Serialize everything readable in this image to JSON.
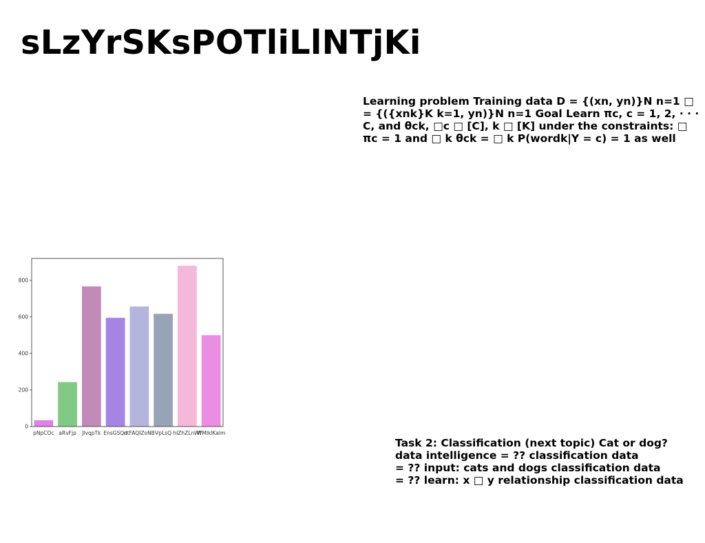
{
  "slide": {
    "title": "sLzYrSKsPOTliLlNTjKi",
    "text_block_1": [
      "Learning problem Training data D = {(xn, yn)}N n=1 □",
      "= {({xnk}K k=1, yn)}N n=1 Goal Learn πc, c = 1, 2, · · ·",
      "C, and θck, □c □ [C], k □ [K] under the constraints: □",
      "πc = 1 and □ k θck = □ k P(wordk|Y = c) = 1 as well"
    ],
    "text_block_2": [
      "Task 2: Classification (next topic) Cat or dog?",
      "data intelligence = ?? classification data",
      "= ?? input: cats and dogs classification data",
      "= ?? learn: x □ y relationship classification data"
    ]
  },
  "chart_data": {
    "type": "bar",
    "title": "",
    "xlabel": "",
    "ylabel": "",
    "categories": [
      "pNpCOc",
      "aRvFjp",
      "JlvqpTk",
      "EnsGSQn",
      "dtFAQIZoNB",
      "VpLsQ",
      "hlZhZLnWf",
      "WMIklKalm"
    ],
    "values": [
      35,
      243,
      767,
      595,
      657,
      617,
      880,
      500
    ],
    "colors": [
      "#dc84e6",
      "#82c986",
      "#c28ab9",
      "#a485e4",
      "#b3b5dc",
      "#98a4b6",
      "#f5b8d8",
      "#e98ee2"
    ],
    "ylim": [
      0,
      920
    ],
    "yticks": [
      0,
      200,
      400,
      600,
      800
    ],
    "grid": false
  }
}
